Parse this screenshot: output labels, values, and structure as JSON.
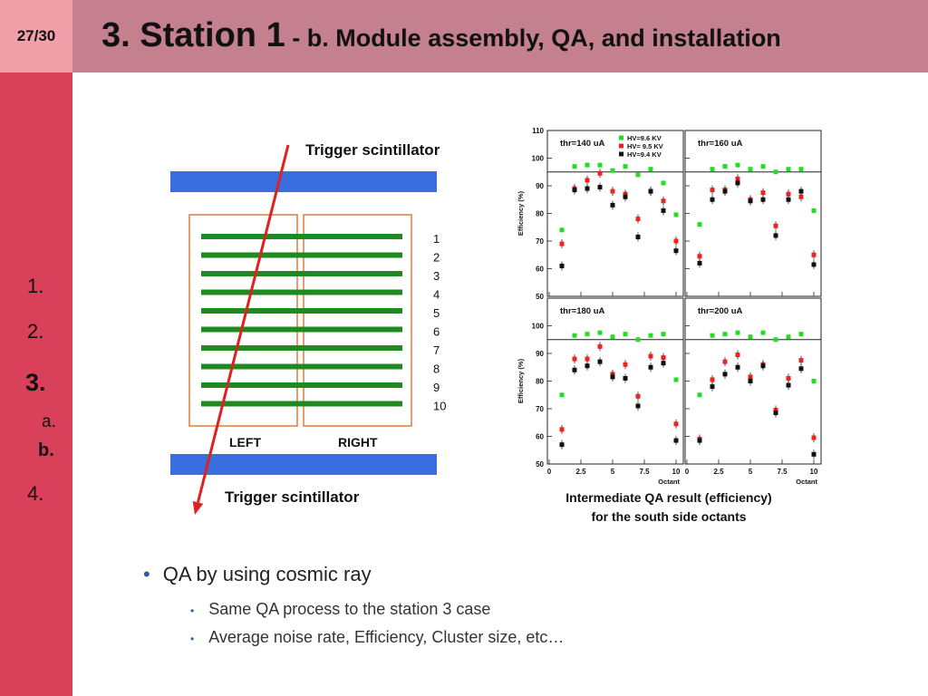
{
  "slide": {
    "page_number": "27/30",
    "title_main": "3. Station 1",
    "title_sub": " - b. Module assembly, QA, and installation"
  },
  "nav": {
    "items": [
      {
        "label": "1."
      },
      {
        "label": "2."
      },
      {
        "label": "3."
      },
      {
        "label": "a."
      },
      {
        "label": "b."
      },
      {
        "label": "4."
      }
    ]
  },
  "diagram": {
    "trigger_top_label": "Trigger scintillator",
    "trigger_bottom_label": "Trigger scintillator",
    "left_label": "LEFT",
    "right_label": "RIGHT",
    "layer_numbers": [
      "1",
      "2",
      "3",
      "4",
      "5",
      "6",
      "7",
      "8",
      "9",
      "10"
    ]
  },
  "colors": {
    "scintillator": "#3a6ee0",
    "strip": "#1f8a1f",
    "box": "#e07a3a",
    "ray": "#e02020",
    "sidebar": "#d9415a",
    "header": "#c4808f"
  },
  "chart_data": {
    "type": "scatter",
    "xlabel": "Octant",
    "ylabel": "Efficiency (%)",
    "xlim": [
      0,
      10
    ],
    "ylim": [
      50,
      110
    ],
    "x_ticks": [
      "0",
      "2.5",
      "5",
      "7.5",
      "10"
    ],
    "y_ticks": [
      "50",
      "60",
      "70",
      "80",
      "90",
      "100",
      "110"
    ],
    "reference_line": 95,
    "legend_position": "top-right",
    "series_meta": [
      {
        "name": "HV=9.6 KV",
        "color": "#22dd22"
      },
      {
        "name": "HV= 9.5 KV",
        "color": "#ee2222"
      },
      {
        "name": "HV=9.4 KV",
        "color": "#111111"
      }
    ],
    "x": [
      1,
      2,
      3,
      4,
      5,
      6,
      7,
      8,
      9,
      10
    ],
    "panels": [
      {
        "label": "thr=140 uA",
        "series": [
          {
            "name": "HV=9.6 KV",
            "values": [
              74,
              97,
              97.5,
              97.5,
              95.5,
              97,
              94,
              96,
              91,
              79.5
            ]
          },
          {
            "name": "HV= 9.5 KV",
            "values": [
              69,
              89,
              92,
              94.5,
              88,
              87,
              78,
              88,
              84.5,
              70
            ]
          },
          {
            "name": "HV=9.4 KV",
            "values": [
              61,
              88.5,
              89,
              89.5,
              83,
              86,
              71.5,
              88,
              81,
              66.5
            ]
          }
        ]
      },
      {
        "label": "thr=160 uA",
        "series": [
          {
            "name": "HV=9.6 KV",
            "values": [
              76,
              96,
              97,
              97.5,
              96,
              97,
              95,
              96,
              96,
              81
            ]
          },
          {
            "name": "HV= 9.5 KV",
            "values": [
              64.5,
              88.5,
              88.5,
              92.5,
              85,
              87.5,
              75.5,
              87,
              86,
              65
            ]
          },
          {
            "name": "HV=9.4 KV",
            "values": [
              62,
              85,
              88,
              91,
              84.5,
              85,
              72,
              85,
              88,
              61.5
            ]
          }
        ]
      },
      {
        "label": "thr=180 uA",
        "series": [
          {
            "name": "HV=9.6 KV",
            "values": [
              75,
              96.5,
              97,
              97.5,
              96,
              97,
              95,
              96.5,
              97,
              80.5
            ]
          },
          {
            "name": "HV= 9.5 KV",
            "values": [
              62.5,
              88,
              88,
              92.5,
              82.5,
              86,
              74.5,
              89,
              88.5,
              64.5
            ]
          },
          {
            "name": "HV=9.4 KV",
            "values": [
              57,
              84,
              85.5,
              87,
              81.5,
              81,
              71,
              85,
              86.5,
              58.5
            ]
          }
        ]
      },
      {
        "label": "thr=200 uA",
        "series": [
          {
            "name": "HV=9.6 KV",
            "values": [
              75,
              96.5,
              97,
              97.5,
              96,
              97.5,
              95,
              96,
              97,
              80
            ]
          },
          {
            "name": "HV= 9.5 KV",
            "values": [
              59,
              80.5,
              87,
              89.5,
              81.5,
              86,
              69.5,
              81,
              87.5,
              59.5
            ]
          },
          {
            "name": "HV=9.4 KV",
            "values": [
              58.5,
              78,
              82.5,
              85,
              80,
              85.5,
              68.5,
              78.5,
              84.5,
              53.5
            ]
          }
        ]
      }
    ]
  },
  "caption": {
    "line1": "Intermediate QA result (efficiency)",
    "line2": "for the south side octants"
  },
  "bullets": {
    "main": "QA by using cosmic ray",
    "sub": [
      "Same QA process to the station 3 case",
      "Average noise rate, Efficiency, Cluster size, etc…"
    ]
  }
}
